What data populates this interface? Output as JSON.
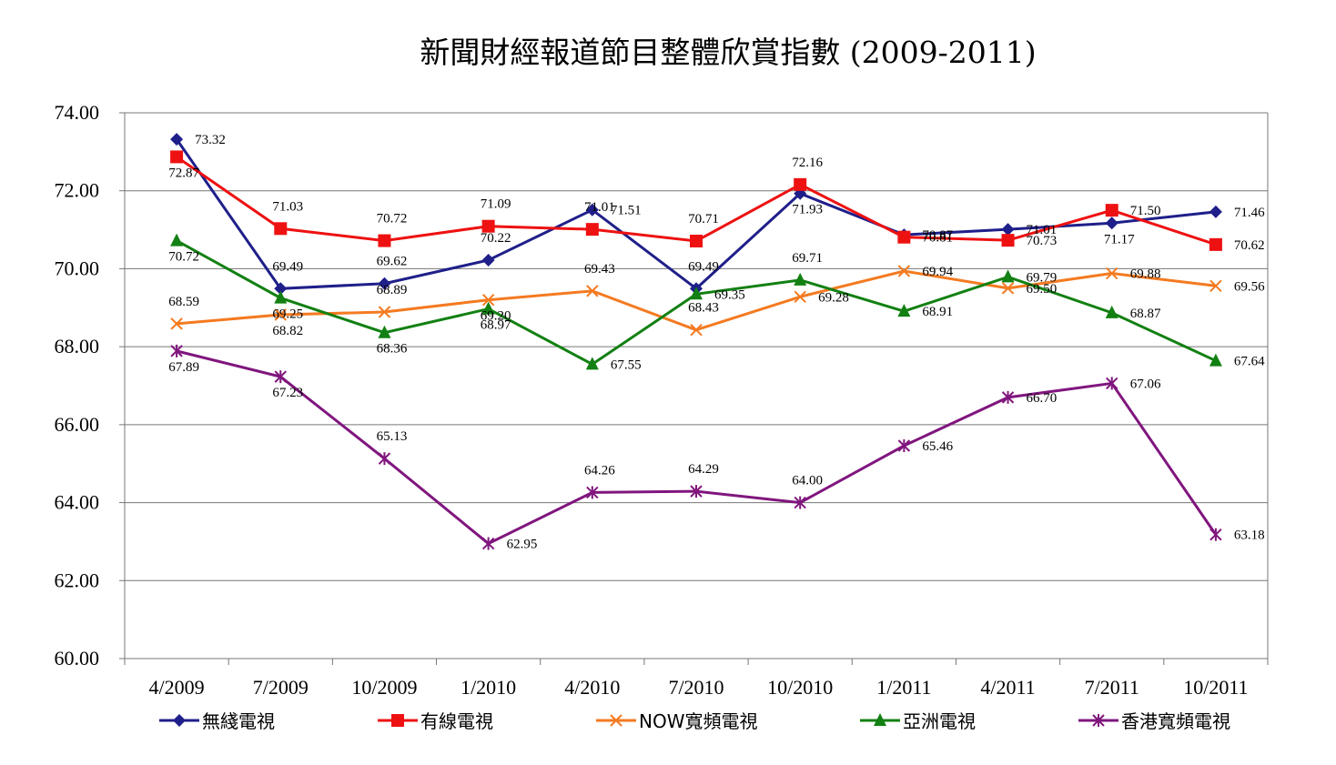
{
  "chart_data": {
    "type": "line",
    "title": "新聞財經報道節目整體欣賞指數 (2009-2011)",
    "xlabel": "",
    "ylabel": "",
    "categories": [
      "4/2009",
      "7/2009",
      "10/2009",
      "1/2010",
      "4/2010",
      "7/2010",
      "10/2010",
      "1/2011",
      "4/2011",
      "7/2011",
      "10/2011"
    ],
    "ylim": [
      60,
      74
    ],
    "yticks": [
      "60.00",
      "62.00",
      "64.00",
      "66.00",
      "68.00",
      "70.00",
      "72.00",
      "74.00"
    ],
    "grid": "horizontal",
    "legend": "bottom",
    "series": [
      {
        "name": "無綫電視",
        "color": "#1f1f8a",
        "marker": "diamond",
        "values": [
          73.32,
          69.49,
          69.62,
          70.22,
          71.51,
          69.49,
          71.93,
          70.87,
          71.01,
          71.17,
          71.46
        ],
        "labels": [
          "73.32",
          "69.49",
          "69.62",
          "70.22",
          "71.51",
          "69.49",
          "71.93",
          "70.87",
          "71.01",
          "71.17",
          "71.46"
        ]
      },
      {
        "name": "有線電視",
        "color": "#ee1111",
        "marker": "square",
        "values": [
          72.87,
          71.03,
          70.72,
          71.09,
          71.01,
          70.71,
          72.16,
          70.81,
          70.73,
          71.5,
          70.62
        ],
        "labels": [
          "72.87",
          "71.03",
          "70.72",
          "71.09",
          "71.01",
          "70.71",
          "72.16",
          "70.81",
          "70.73",
          "71.50",
          "70.62"
        ]
      },
      {
        "name": "NOW寬頻電視",
        "color": "#f47a20",
        "marker": "x",
        "values": [
          68.59,
          68.82,
          68.89,
          69.2,
          69.43,
          68.43,
          69.28,
          69.94,
          69.5,
          69.88,
          69.56
        ],
        "labels": [
          "68.59",
          "68.82",
          "68.89",
          "69.20",
          "69.43",
          "68.43",
          "69.28",
          "69.94",
          "69.50",
          "69.88",
          "69.56"
        ]
      },
      {
        "name": "亞洲電視",
        "color": "#128012",
        "marker": "triangle",
        "values": [
          70.72,
          69.25,
          68.36,
          68.97,
          67.55,
          69.35,
          69.71,
          68.91,
          69.79,
          68.87,
          67.64
        ],
        "labels": [
          "70.72",
          "69.25",
          "68.36",
          "68.97",
          "67.55",
          "69.35",
          "69.71",
          "68.91",
          "69.79",
          "68.87",
          "67.64"
        ]
      },
      {
        "name": "香港寬頻電視",
        "color": "#80167e",
        "marker": "star",
        "values": [
          67.89,
          67.23,
          65.13,
          62.95,
          64.26,
          64.29,
          64.0,
          65.46,
          66.7,
          67.06,
          63.18
        ],
        "labels": [
          "67.89",
          "67.23",
          "65.13",
          "62.95",
          "64.26",
          "64.29",
          "64.00",
          "65.46",
          "66.70",
          "67.06",
          "63.18"
        ]
      }
    ]
  }
}
